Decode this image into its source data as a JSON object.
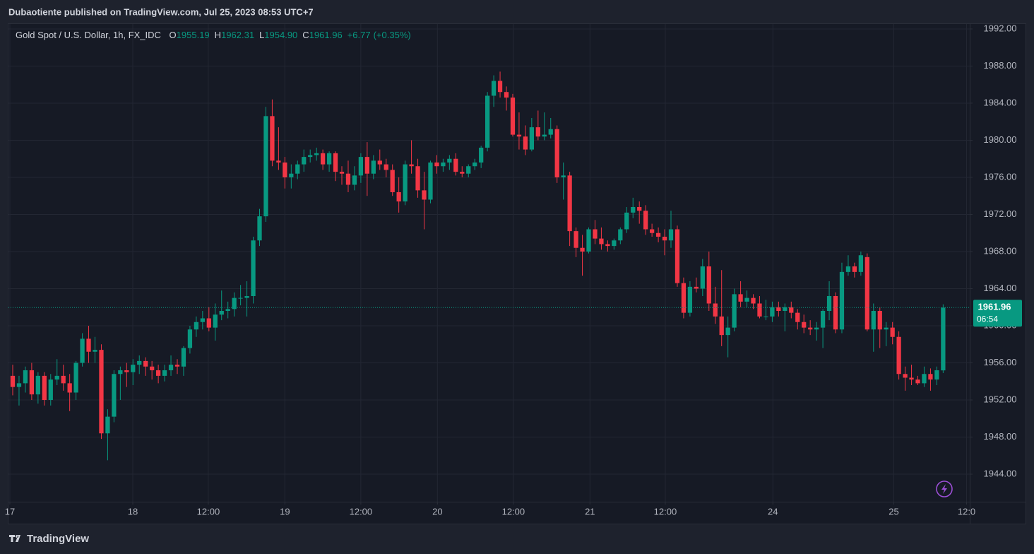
{
  "header": {
    "text": "Dubaotiente published on TradingView.com, Jul 25, 2023 08:53 UTC+7"
  },
  "footer": {
    "logo": "TradingView"
  },
  "chart_data": {
    "type": "candlestick",
    "title": "Gold Spot / U.S. Dollar, 1h, FX_IDC",
    "legend": [
      {
        "name": "O",
        "value": 1955.19,
        "label": "1955.19"
      },
      {
        "name": "H",
        "value": 1962.31,
        "label": "1962.31"
      },
      {
        "name": "L",
        "value": 1954.9,
        "label": "1954.90"
      },
      {
        "name": "C",
        "value": 1961.96,
        "label": "1961.96"
      }
    ],
    "change": "+6.77",
    "change_pct": "(+0.35%)",
    "last_price": 1961.96,
    "countdown": "06:54",
    "up_color": "#089981",
    "down_color": "#f23645",
    "grid": true,
    "ylim": [
      1941.03,
      1992.53
    ],
    "yticks": [
      {
        "value": 1944,
        "label": "1944.00"
      },
      {
        "value": 1948,
        "label": "1948.00"
      },
      {
        "value": 1952,
        "label": "1952.00"
      },
      {
        "value": 1956,
        "label": "1956.00"
      },
      {
        "value": 1960,
        "label": "1960.00"
      },
      {
        "value": 1964,
        "label": "1964.00"
      },
      {
        "value": 1968,
        "label": "1968.00"
      },
      {
        "value": 1972,
        "label": "1972.00"
      },
      {
        "value": 1976,
        "label": "1976.00"
      },
      {
        "value": 1980,
        "label": "1980.00"
      },
      {
        "value": 1984,
        "label": "1984.00"
      },
      {
        "value": 1988,
        "label": "1988.00"
      },
      {
        "value": 1992,
        "label": "1992.00"
      }
    ],
    "xlim": [
      -0.67,
      151.2
    ],
    "xticks": [
      {
        "value": -0.45,
        "label": "17"
      },
      {
        "value": 18.97,
        "label": "18"
      },
      {
        "value": 30.9,
        "label": "12:00"
      },
      {
        "value": 43,
        "label": "19"
      },
      {
        "value": 55,
        "label": "12:00"
      },
      {
        "value": 67.1,
        "label": "20"
      },
      {
        "value": 79.1,
        "label": "12:00"
      },
      {
        "value": 91.2,
        "label": "21"
      },
      {
        "value": 103.1,
        "label": "12:00"
      },
      {
        "value": 120.1,
        "label": "24"
      },
      {
        "value": 139.2,
        "label": "25"
      },
      {
        "value": 150.7,
        "label": "12:0"
      }
    ],
    "candles": [
      [
        1954.6,
        1955.8,
        1952.5,
        1953.4
      ],
      [
        1953.4,
        1954.6,
        1951.4,
        1953.8
      ],
      [
        1953.8,
        1955.6,
        1952.8,
        1955.2
      ],
      [
        1955.2,
        1956.0,
        1952.0,
        1952.6
      ],
      [
        1952.6,
        1955.0,
        1951.6,
        1954.6
      ],
      [
        1954.6,
        1955.0,
        1951.4,
        1952.0
      ],
      [
        1952.0,
        1954.8,
        1951.4,
        1954.2
      ],
      [
        1954.2,
        1956.4,
        1953.6,
        1954.6
      ],
      [
        1954.6,
        1955.8,
        1953.0,
        1953.8
      ],
      [
        1953.8,
        1954.8,
        1950.8,
        1952.8
      ],
      [
        1952.8,
        1956.2,
        1952.0,
        1956.0
      ],
      [
        1956.0,
        1959.2,
        1955.6,
        1958.6
      ],
      [
        1958.6,
        1960.0,
        1956.0,
        1957.2
      ],
      [
        1957.2,
        1958.8,
        1956.0,
        1957.4
      ],
      [
        1957.4,
        1958.0,
        1947.8,
        1948.4
      ],
      [
        1948.4,
        1951.0,
        1945.5,
        1950.2
      ],
      [
        1950.2,
        1955.2,
        1949.6,
        1954.8
      ],
      [
        1954.8,
        1955.6,
        1952.0,
        1955.2
      ],
      [
        1955.2,
        1956.0,
        1953.4,
        1955.0
      ],
      [
        1955.0,
        1956.4,
        1953.6,
        1955.8
      ],
      [
        1955.8,
        1956.8,
        1954.8,
        1956.2
      ],
      [
        1956.2,
        1956.6,
        1954.6,
        1955.6
      ],
      [
        1955.6,
        1956.2,
        1954.2,
        1955.2
      ],
      [
        1955.2,
        1955.8,
        1953.8,
        1954.6
      ],
      [
        1954.6,
        1955.8,
        1954.0,
        1955.2
      ],
      [
        1955.2,
        1956.8,
        1954.6,
        1955.8
      ],
      [
        1955.8,
        1956.4,
        1954.8,
        1955.6
      ],
      [
        1955.6,
        1957.8,
        1954.6,
        1957.6
      ],
      [
        1957.6,
        1960.0,
        1957.0,
        1959.6
      ],
      [
        1959.6,
        1961.0,
        1958.8,
        1960.4
      ],
      [
        1960.4,
        1961.6,
        1959.6,
        1960.8
      ],
      [
        1960.8,
        1962.0,
        1959.4,
        1959.8
      ],
      [
        1959.8,
        1962.4,
        1958.4,
        1961.2
      ],
      [
        1961.2,
        1963.8,
        1960.6,
        1961.6
      ],
      [
        1961.6,
        1962.6,
        1960.8,
        1961.8
      ],
      [
        1961.8,
        1963.6,
        1961.0,
        1963.0
      ],
      [
        1963.0,
        1964.4,
        1962.2,
        1963.0
      ],
      [
        1963.0,
        1964.8,
        1961.0,
        1963.2
      ],
      [
        1963.2,
        1969.6,
        1962.4,
        1969.2
      ],
      [
        1969.2,
        1972.6,
        1968.6,
        1971.8
      ],
      [
        1971.8,
        1983.6,
        1971.2,
        1982.6
      ],
      [
        1982.6,
        1984.4,
        1977.2,
        1977.8
      ],
      [
        1977.8,
        1981.4,
        1976.8,
        1977.6
      ],
      [
        1977.6,
        1978.2,
        1974.8,
        1976.0
      ],
      [
        1976.0,
        1977.4,
        1974.8,
        1976.4
      ],
      [
        1976.4,
        1977.8,
        1975.8,
        1977.4
      ],
      [
        1977.4,
        1979.0,
        1976.6,
        1978.2
      ],
      [
        1978.2,
        1979.0,
        1977.6,
        1978.4
      ],
      [
        1978.4,
        1979.2,
        1977.8,
        1978.6
      ],
      [
        1978.6,
        1979.0,
        1976.8,
        1977.4
      ],
      [
        1977.4,
        1978.8,
        1976.6,
        1978.6
      ],
      [
        1978.6,
        1978.8,
        1975.6,
        1976.6
      ],
      [
        1976.6,
        1977.2,
        1975.2,
        1976.4
      ],
      [
        1976.4,
        1977.8,
        1974.4,
        1975.2
      ],
      [
        1975.2,
        1977.2,
        1974.6,
        1976.2
      ],
      [
        1976.2,
        1978.6,
        1975.4,
        1978.2
      ],
      [
        1978.2,
        1979.8,
        1974.0,
        1976.4
      ],
      [
        1976.4,
        1978.4,
        1975.8,
        1977.8
      ],
      [
        1977.8,
        1979.0,
        1976.8,
        1977.4
      ],
      [
        1977.4,
        1978.0,
        1976.0,
        1976.8
      ],
      [
        1976.8,
        1977.4,
        1974.0,
        1974.4
      ],
      [
        1974.4,
        1976.0,
        1972.2,
        1973.4
      ],
      [
        1973.4,
        1977.8,
        1973.0,
        1977.4
      ],
      [
        1977.4,
        1980.0,
        1976.4,
        1977.2
      ],
      [
        1977.2,
        1978.0,
        1973.8,
        1974.6
      ],
      [
        1974.6,
        1976.6,
        1970.4,
        1973.6
      ],
      [
        1973.6,
        1977.8,
        1973.2,
        1977.6
      ],
      [
        1977.6,
        1978.4,
        1976.4,
        1977.2
      ],
      [
        1977.2,
        1978.0,
        1976.6,
        1977.6
      ],
      [
        1977.6,
        1978.4,
        1976.8,
        1978.0
      ],
      [
        1978.0,
        1978.6,
        1976.2,
        1976.6
      ],
      [
        1976.6,
        1977.2,
        1976.0,
        1976.4
      ],
      [
        1976.4,
        1977.4,
        1976.0,
        1977.2
      ],
      [
        1977.2,
        1978.0,
        1976.8,
        1977.6
      ],
      [
        1977.6,
        1979.4,
        1977.0,
        1979.2
      ],
      [
        1979.2,
        1985.2,
        1978.8,
        1984.8
      ],
      [
        1984.8,
        1987.0,
        1983.6,
        1986.4
      ],
      [
        1986.4,
        1987.4,
        1984.6,
        1985.2
      ],
      [
        1985.2,
        1985.8,
        1983.2,
        1984.6
      ],
      [
        1984.6,
        1985.0,
        1980.4,
        1980.6
      ],
      [
        1980.6,
        1983.0,
        1979.0,
        1980.4
      ],
      [
        1980.4,
        1981.6,
        1978.4,
        1979.0
      ],
      [
        1979.0,
        1982.4,
        1978.8,
        1981.4
      ],
      [
        1981.4,
        1983.2,
        1980.0,
        1980.4
      ],
      [
        1980.4,
        1983.0,
        1980.0,
        1980.6
      ],
      [
        1980.6,
        1982.4,
        1980.2,
        1981.2
      ],
      [
        1981.2,
        1981.6,
        1975.4,
        1976.0
      ],
      [
        1976.0,
        1977.6,
        1973.6,
        1976.2
      ],
      [
        1976.2,
        1976.6,
        1968.6,
        1970.2
      ],
      [
        1970.2,
        1970.6,
        1967.4,
        1968.4
      ],
      [
        1968.4,
        1969.8,
        1965.4,
        1968.0
      ],
      [
        1968.0,
        1970.6,
        1967.8,
        1970.4
      ],
      [
        1970.4,
        1971.4,
        1968.8,
        1969.4
      ],
      [
        1969.4,
        1970.6,
        1968.2,
        1968.8
      ],
      [
        1968.8,
        1969.2,
        1968.0,
        1968.6
      ],
      [
        1968.6,
        1969.4,
        1968.2,
        1969.2
      ],
      [
        1969.2,
        1970.6,
        1968.8,
        1970.4
      ],
      [
        1970.4,
        1972.8,
        1970.0,
        1972.2
      ],
      [
        1972.2,
        1973.8,
        1971.6,
        1972.8
      ],
      [
        1972.8,
        1973.4,
        1971.0,
        1972.4
      ],
      [
        1972.4,
        1973.0,
        1969.8,
        1970.4
      ],
      [
        1970.4,
        1971.0,
        1969.6,
        1970.0
      ],
      [
        1970.0,
        1970.6,
        1969.0,
        1969.6
      ],
      [
        1969.6,
        1970.4,
        1967.6,
        1969.2
      ],
      [
        1969.2,
        1972.4,
        1968.4,
        1970.4
      ],
      [
        1970.4,
        1970.8,
        1964.2,
        1964.6
      ],
      [
        1964.6,
        1965.2,
        1960.8,
        1961.4
      ],
      [
        1961.4,
        1964.8,
        1961.0,
        1964.2
      ],
      [
        1964.2,
        1965.2,
        1963.6,
        1964.0
      ],
      [
        1964.0,
        1967.2,
        1963.2,
        1966.4
      ],
      [
        1966.4,
        1968.0,
        1961.6,
        1962.4
      ],
      [
        1962.4,
        1964.2,
        1960.2,
        1961.0
      ],
      [
        1961.0,
        1966.0,
        1957.8,
        1959.0
      ],
      [
        1959.0,
        1961.0,
        1956.6,
        1959.8
      ],
      [
        1959.8,
        1964.0,
        1959.4,
        1963.4
      ],
      [
        1963.4,
        1964.8,
        1962.0,
        1962.6
      ],
      [
        1962.6,
        1963.8,
        1962.0,
        1963.0
      ],
      [
        1963.0,
        1963.4,
        1961.8,
        1962.4
      ],
      [
        1962.4,
        1963.2,
        1960.8,
        1961.0
      ],
      [
        1961.0,
        1962.8,
        1960.6,
        1961.0
      ],
      [
        1961.0,
        1962.6,
        1960.4,
        1962.0
      ],
      [
        1962.0,
        1962.6,
        1961.0,
        1961.6
      ],
      [
        1961.6,
        1962.4,
        1959.4,
        1962.0
      ],
      [
        1962.0,
        1962.6,
        1960.8,
        1961.4
      ],
      [
        1961.4,
        1961.8,
        1959.6,
        1960.4
      ],
      [
        1960.4,
        1961.2,
        1959.2,
        1959.8
      ],
      [
        1959.8,
        1960.6,
        1959.0,
        1959.6
      ],
      [
        1959.6,
        1960.4,
        1958.4,
        1959.8
      ],
      [
        1959.8,
        1961.8,
        1957.6,
        1961.6
      ],
      [
        1961.6,
        1964.8,
        1960.6,
        1963.2
      ],
      [
        1963.2,
        1963.6,
        1959.2,
        1959.6
      ],
      [
        1959.6,
        1966.8,
        1959.2,
        1965.8
      ],
      [
        1965.8,
        1967.6,
        1965.4,
        1966.4
      ],
      [
        1966.4,
        1966.8,
        1965.2,
        1965.8
      ],
      [
        1965.8,
        1968.0,
        1965.4,
        1967.6
      ],
      [
        1967.4,
        1967.8,
        1959.4,
        1959.6
      ],
      [
        1959.6,
        1962.4,
        1957.2,
        1961.6
      ],
      [
        1961.6,
        1962.0,
        1957.6,
        1959.6
      ],
      [
        1959.6,
        1960.4,
        1957.8,
        1959.8
      ],
      [
        1959.8,
        1960.4,
        1958.0,
        1958.8
      ],
      [
        1958.8,
        1959.4,
        1954.2,
        1954.8
      ],
      [
        1954.8,
        1955.6,
        1953.0,
        1954.4
      ],
      [
        1954.4,
        1955.8,
        1953.6,
        1954.2
      ],
      [
        1954.2,
        1954.6,
        1953.6,
        1953.8
      ],
      [
        1953.8,
        1955.6,
        1953.4,
        1954.8
      ],
      [
        1954.8,
        1955.4,
        1953.0,
        1954.2
      ],
      [
        1954.2,
        1955.6,
        1953.6,
        1955.2
      ],
      [
        1955.19,
        1962.31,
        1954.9,
        1961.96
      ]
    ]
  }
}
